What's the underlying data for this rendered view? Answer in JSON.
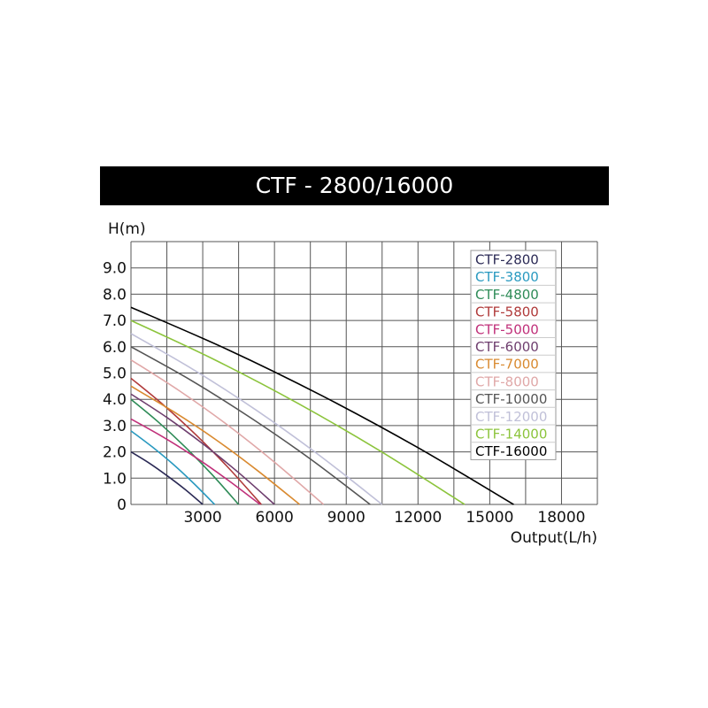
{
  "chart_data": {
    "type": "line",
    "title": "CTF - 2800/16000",
    "xlabel": "Output(L/h)",
    "ylabel": "H(m)",
    "xlim": [
      0,
      19500
    ],
    "ylim": [
      0,
      10
    ],
    "x_grid_step": 1500,
    "y_grid_step": 1.0,
    "grid": true,
    "legend_position": "top-right",
    "x_ticks": [
      "3000",
      "6000",
      "9000",
      "12000",
      "15000",
      "18000"
    ],
    "x_tick_values": [
      3000,
      6000,
      9000,
      12000,
      15000,
      18000
    ],
    "y_ticks": [
      "0",
      "1.0",
      "2.0",
      "3.0",
      "4.0",
      "5.0",
      "6.0",
      "7.0",
      "8.0",
      "9.0"
    ],
    "y_tick_values": [
      0,
      1,
      2,
      3,
      4,
      5,
      6,
      7,
      8,
      9
    ],
    "series": [
      {
        "name": "CTF-2800",
        "color": "#2b2a55",
        "x": [
          0,
          750,
          1500,
          2250,
          3000
        ],
        "y": [
          2.0,
          1.58,
          1.1,
          0.58,
          0
        ]
      },
      {
        "name": "CTF-3800",
        "color": "#2a9ac0",
        "x": [
          0,
          875,
          1750,
          2625,
          3500
        ],
        "y": [
          2.8,
          2.2,
          1.54,
          0.8,
          0
        ]
      },
      {
        "name": "CTF-4800",
        "color": "#2e8b57",
        "x": [
          0,
          1125,
          2250,
          3375,
          4500
        ],
        "y": [
          4.0,
          3.15,
          2.2,
          1.15,
          0
        ]
      },
      {
        "name": "CTF-5800",
        "color": "#b03a3a",
        "x": [
          0,
          1363,
          2725,
          4088,
          5450
        ],
        "y": [
          4.8,
          3.78,
          2.64,
          1.38,
          0
        ]
      },
      {
        "name": "CTF-5000",
        "color": "#c0307a",
        "x": [
          0,
          1350,
          2700,
          4050,
          5400
        ],
        "y": [
          3.25,
          2.56,
          1.79,
          0.93,
          0
        ]
      },
      {
        "name": "CTF-6000",
        "color": "#6e3e6e",
        "x": [
          0,
          1500,
          3000,
          4500,
          6000
        ],
        "y": [
          4.2,
          3.31,
          2.31,
          1.21,
          0
        ]
      },
      {
        "name": "CTF-7000",
        "color": "#d98a30",
        "x": [
          0,
          1763,
          3525,
          5288,
          7050
        ],
        "y": [
          4.5,
          3.54,
          2.48,
          1.29,
          0
        ]
      },
      {
        "name": "CTF-8000",
        "color": "#e0a8a8",
        "x": [
          0,
          2013,
          4025,
          6038,
          8050
        ],
        "y": [
          5.5,
          4.33,
          3.03,
          1.58,
          0
        ]
      },
      {
        "name": "CTF-10000",
        "color": "#555555",
        "x": [
          0,
          2500,
          5000,
          7500,
          10000
        ],
        "y": [
          6.0,
          4.73,
          3.3,
          1.73,
          0
        ]
      },
      {
        "name": "CTF-12000",
        "color": "#c0c0d8",
        "x": [
          0,
          2625,
          5250,
          7875,
          10500
        ],
        "y": [
          6.5,
          5.12,
          3.58,
          1.87,
          0
        ]
      },
      {
        "name": "CTF-14000",
        "color": "#8cc43c",
        "x": [
          0,
          3488,
          6975,
          10463,
          13950
        ],
        "y": [
          7.0,
          5.51,
          3.85,
          2.01,
          0
        ]
      },
      {
        "name": "CTF-16000",
        "color": "#000000",
        "x": [
          0,
          4000,
          8000,
          12000,
          16000
        ],
        "y": [
          7.5,
          5.91,
          4.13,
          2.16,
          0
        ]
      }
    ]
  }
}
